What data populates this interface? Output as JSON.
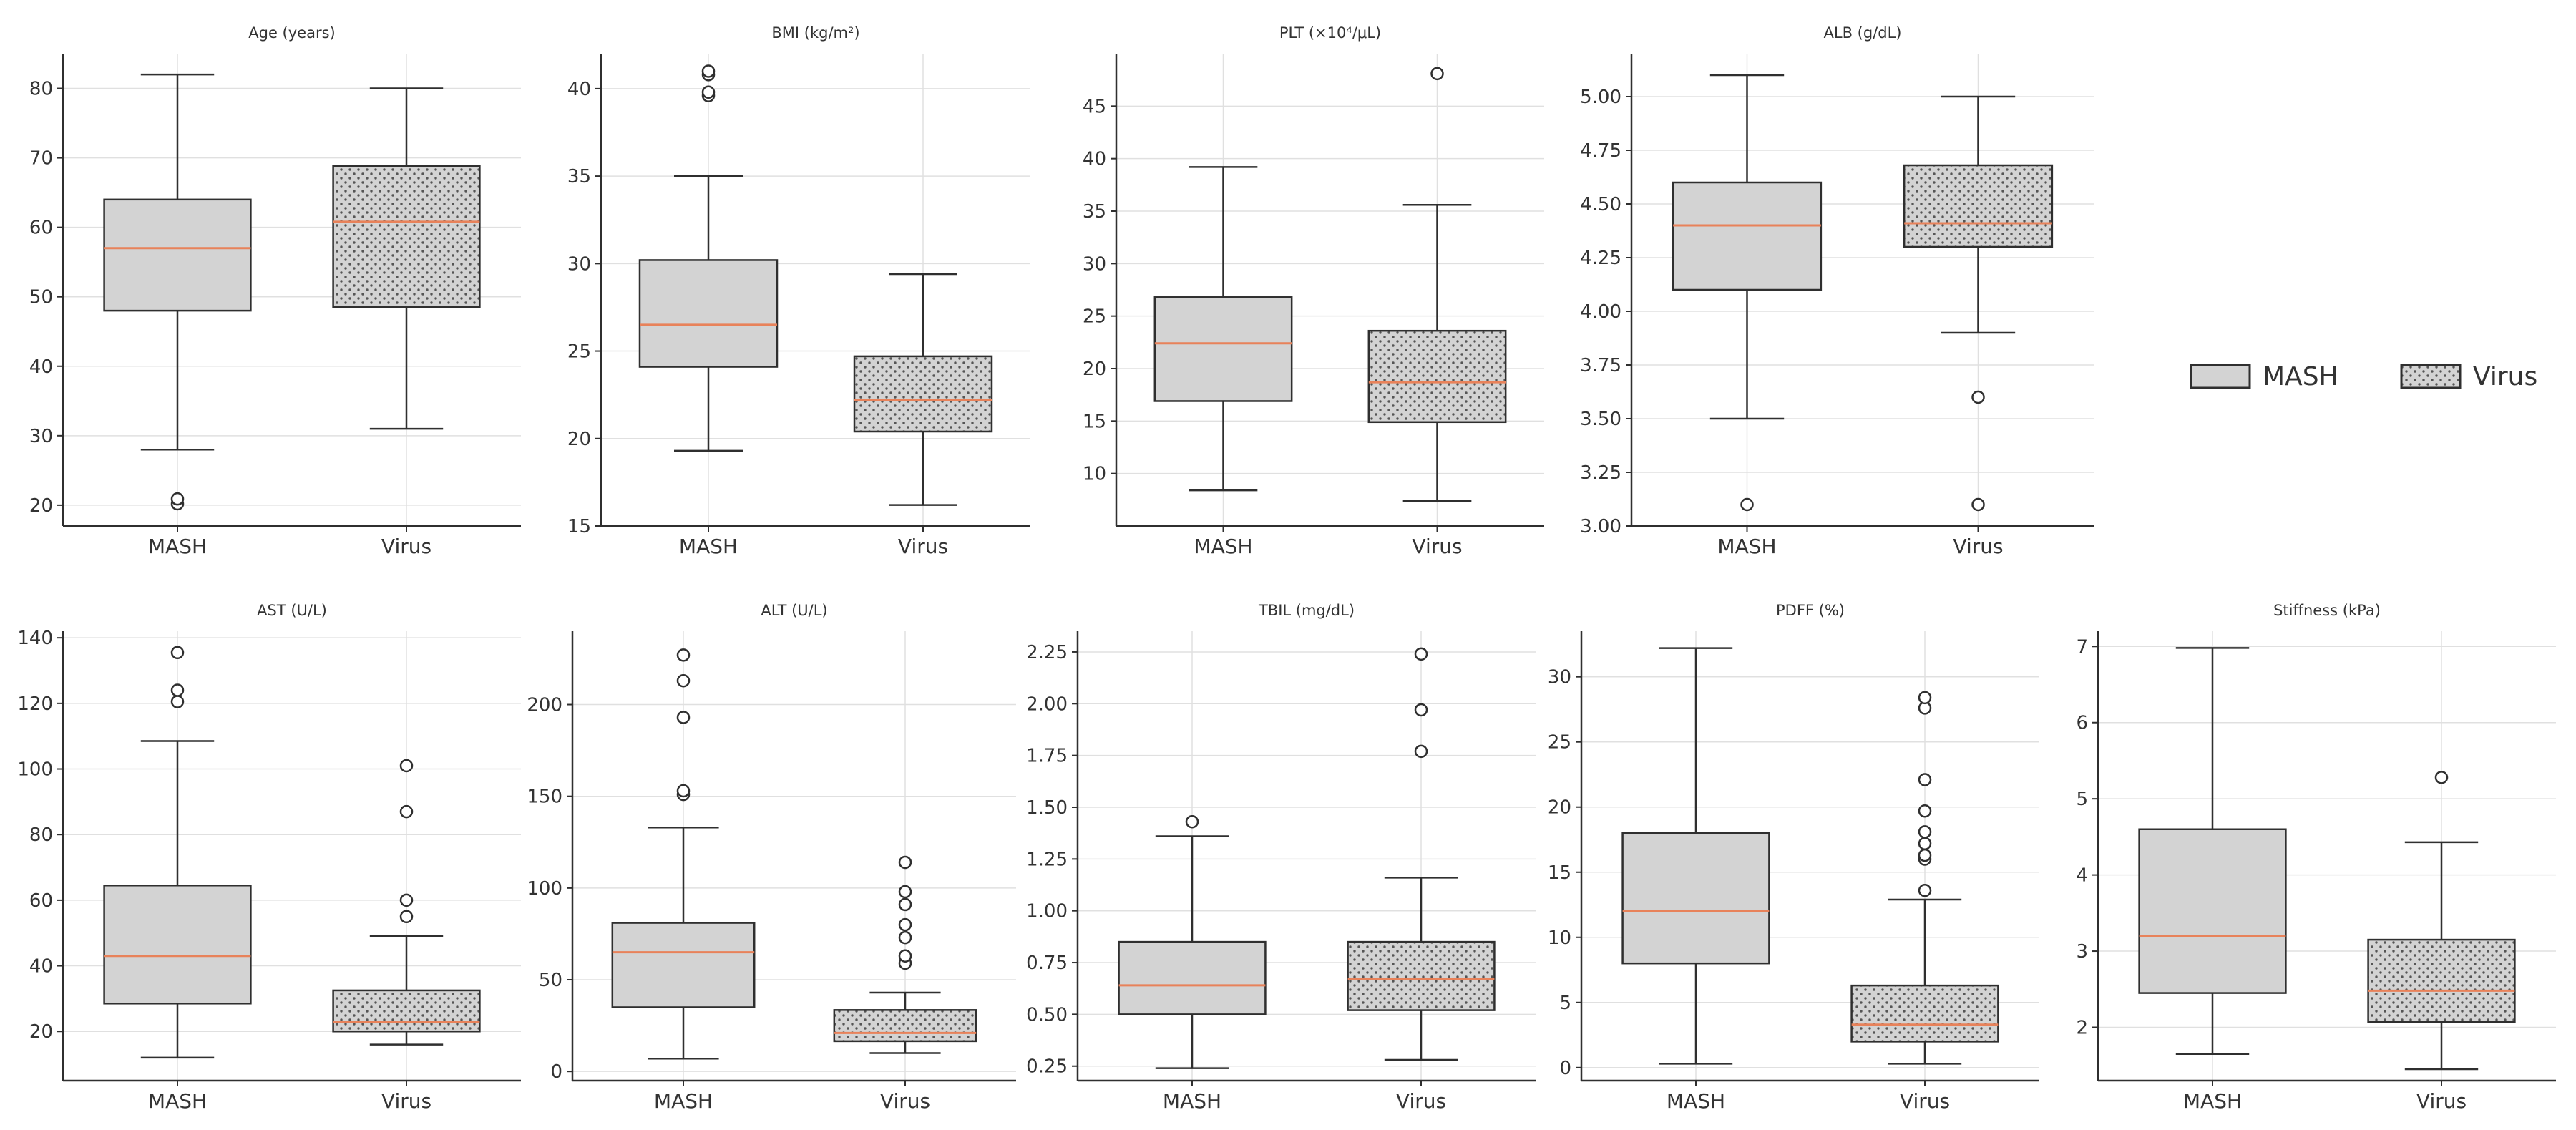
{
  "chart_data": [
    {
      "type": "box",
      "title": "Age (years)",
      "yticks": [
        20,
        30,
        40,
        50,
        60,
        70,
        80
      ],
      "ylim": [
        17,
        85
      ],
      "categories": [
        "MASH",
        "Virus"
      ],
      "boxes": [
        {
          "category": "MASH",
          "q1": 48,
          "median": 57,
          "q3": 64,
          "whisker_low": 28,
          "whisker_high": 82,
          "outliers": [
            20.2,
            20.9
          ]
        },
        {
          "category": "Virus",
          "q1": 48.5,
          "median": 60.8,
          "q3": 68.8,
          "whisker_low": 31,
          "whisker_high": 80,
          "outliers": []
        }
      ]
    },
    {
      "type": "box",
      "title": "BMI (kg/m²)",
      "yticks": [
        15,
        20,
        25,
        30,
        35,
        40
      ],
      "ylim": [
        15,
        42
      ],
      "categories": [
        "MASH",
        "Virus"
      ],
      "boxes": [
        {
          "category": "MASH",
          "q1": 24.1,
          "median": 26.5,
          "q3": 30.2,
          "whisker_low": 19.3,
          "whisker_high": 35,
          "outliers": [
            39.6,
            39.8,
            40.8,
            41
          ]
        },
        {
          "category": "Virus",
          "q1": 20.4,
          "median": 22.2,
          "q3": 24.7,
          "whisker_low": 16.2,
          "whisker_high": 29.4,
          "outliers": []
        }
      ]
    },
    {
      "type": "box",
      "title": "PLT (×10⁴/μL)",
      "yticks": [
        10,
        15,
        20,
        25,
        30,
        35,
        40,
        45
      ],
      "ylim": [
        5,
        50
      ],
      "categories": [
        "MASH",
        "Virus"
      ],
      "boxes": [
        {
          "category": "MASH",
          "q1": 16.9,
          "median": 22.4,
          "q3": 26.8,
          "whisker_low": 8.4,
          "whisker_high": 39.2,
          "outliers": []
        },
        {
          "category": "Virus",
          "q1": 14.9,
          "median": 18.7,
          "q3": 23.6,
          "whisker_low": 7.4,
          "whisker_high": 35.6,
          "outliers": [
            48.1
          ]
        }
      ]
    },
    {
      "type": "box",
      "title": "ALB (g/dL)",
      "yticks": [
        3.0,
        3.25,
        3.5,
        3.75,
        4.0,
        4.25,
        4.5,
        4.75,
        5.0
      ],
      "ylim": [
        3.0,
        5.2
      ],
      "categories": [
        "MASH",
        "Virus"
      ],
      "boxes": [
        {
          "category": "MASH",
          "q1": 4.1,
          "median": 4.4,
          "q3": 4.6,
          "whisker_low": 3.5,
          "whisker_high": 5.1,
          "outliers": [
            3.1
          ]
        },
        {
          "category": "Virus",
          "q1": 4.3,
          "median": 4.41,
          "q3": 4.68,
          "whisker_low": 3.9,
          "whisker_high": 5.0,
          "outliers": [
            3.6,
            3.1
          ]
        }
      ]
    },
    {
      "type": "box",
      "title": "AST (U/L)",
      "yticks": [
        20,
        40,
        60,
        80,
        100,
        120,
        140
      ],
      "ylim": [
        5,
        142
      ],
      "categories": [
        "MASH",
        "Virus"
      ],
      "boxes": [
        {
          "category": "MASH",
          "q1": 28.5,
          "median": 43,
          "q3": 64.5,
          "whisker_low": 12,
          "whisker_high": 108.5,
          "outliers": [
            120.5,
            124,
            135.5
          ]
        },
        {
          "category": "Virus",
          "q1": 20,
          "median": 23,
          "q3": 32.5,
          "whisker_low": 16,
          "whisker_high": 49,
          "outliers": [
            55,
            60,
            87,
            101
          ]
        }
      ]
    },
    {
      "type": "box",
      "title": "ALT (U/L)",
      "yticks": [
        0,
        50,
        100,
        150,
        200
      ],
      "ylim": [
        -5,
        240
      ],
      "categories": [
        "MASH",
        "Virus"
      ],
      "boxes": [
        {
          "category": "MASH",
          "q1": 35,
          "median": 65,
          "q3": 81,
          "whisker_low": 7,
          "whisker_high": 133,
          "outliers": [
            151,
            153,
            193,
            213,
            227
          ]
        },
        {
          "category": "Virus",
          "q1": 16.5,
          "median": 21,
          "q3": 33.5,
          "whisker_low": 10,
          "whisker_high": 43,
          "outliers": [
            59,
            63,
            73,
            80,
            91,
            98,
            114
          ]
        }
      ]
    },
    {
      "type": "box",
      "title": "TBIL (mg/dL)",
      "yticks": [
        0.25,
        0.5,
        0.75,
        1.0,
        1.25,
        1.5,
        1.75,
        2.0,
        2.25
      ],
      "ylim": [
        0.18,
        2.35
      ],
      "categories": [
        "MASH",
        "Virus"
      ],
      "boxes": [
        {
          "category": "MASH",
          "q1": 0.5,
          "median": 0.64,
          "q3": 0.85,
          "whisker_low": 0.24,
          "whisker_high": 1.36,
          "outliers": [
            1.43
          ]
        },
        {
          "category": "Virus",
          "q1": 0.52,
          "median": 0.67,
          "q3": 0.85,
          "whisker_low": 0.28,
          "whisker_high": 1.16,
          "outliers": [
            1.77,
            1.97,
            2.24
          ]
        }
      ]
    },
    {
      "type": "box",
      "title": "PDFF (%)",
      "yticks": [
        0,
        5,
        10,
        15,
        20,
        25,
        30
      ],
      "ylim": [
        -1,
        33.5
      ],
      "categories": [
        "MASH",
        "Virus"
      ],
      "boxes": [
        {
          "category": "MASH",
          "q1": 8,
          "median": 12,
          "q3": 18,
          "whisker_low": 0.3,
          "whisker_high": 32.2,
          "outliers": []
        },
        {
          "category": "Virus",
          "q1": 2,
          "median": 3.3,
          "q3": 6.3,
          "whisker_low": 0.3,
          "whisker_high": 12.9,
          "outliers": [
            13.6,
            16,
            16.3,
            17.2,
            18.1,
            19.7,
            22.1,
            27.6,
            28.4
          ]
        }
      ]
    },
    {
      "type": "box",
      "title": "Stiffness (kPa)",
      "yticks": [
        2,
        3,
        4,
        5,
        6,
        7
      ],
      "ylim": [
        1.3,
        7.2
      ],
      "categories": [
        "MASH",
        "Virus"
      ],
      "boxes": [
        {
          "category": "MASH",
          "q1": 2.45,
          "median": 3.2,
          "q3": 4.6,
          "whisker_low": 1.65,
          "whisker_high": 6.98,
          "outliers": []
        },
        {
          "category": "Virus",
          "q1": 2.07,
          "median": 2.48,
          "q3": 3.15,
          "whisker_low": 1.45,
          "whisker_high": 4.43,
          "outliers": [
            5.28
          ]
        }
      ]
    }
  ],
  "legend": {
    "position": "right",
    "entries": [
      {
        "label": "MASH",
        "pattern": "solid"
      },
      {
        "label": "Virus",
        "pattern": "dotted"
      }
    ]
  },
  "colors": {
    "box_fill": "#d3d3d3",
    "median": "#e8825a",
    "stroke": "#2f2f2f",
    "grid": "#e0e0e0",
    "dots": "#555555"
  }
}
